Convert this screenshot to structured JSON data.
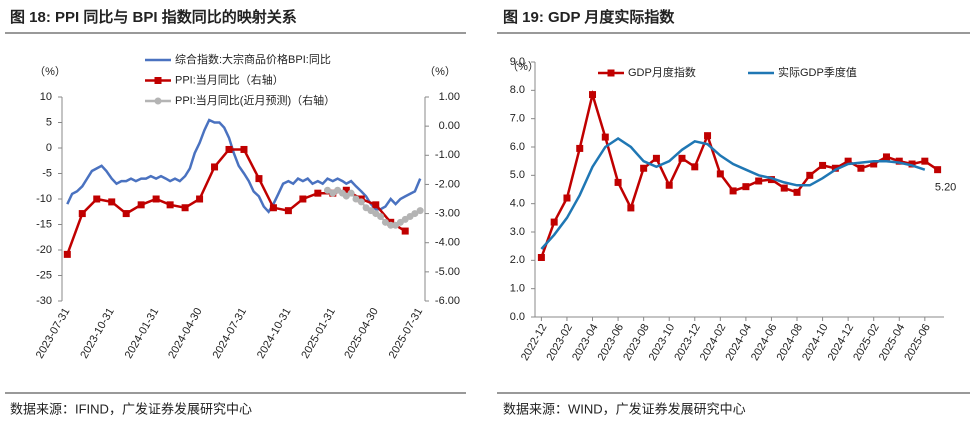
{
  "chart_data": [
    {
      "type": "line",
      "title": "图 18: PPI 同比与 BPI 指数同比的映射关系",
      "source": "数据来源：IFIND，广发证券发展研究中心",
      "y_unit": "（%）",
      "y2_unit": "（%）",
      "xlim": [
        "2023-07-20",
        "2025-08-10"
      ],
      "xticks": [
        "2023-07-31",
        "2023-10-31",
        "2024-01-31",
        "2024-04-30",
        "2024-07-31",
        "2024-10-31",
        "2025-01-31",
        "2025-04-30",
        "2025-07-31"
      ],
      "ylim": [
        -30,
        10
      ],
      "yticks": [
        10,
        5,
        0,
        -5,
        -10,
        -15,
        -20,
        -25,
        -30
      ],
      "y2lim": [
        -6,
        1
      ],
      "y2ticks": [
        {
          "value": 1,
          "label": "1.00"
        },
        {
          "value": 0,
          "label": "0.00"
        },
        {
          "value": -1,
          "label": "-1.00"
        },
        {
          "value": -2,
          "label": "-2.00"
        },
        {
          "value": -3,
          "label": "-3.00"
        },
        {
          "value": -4,
          "label": "-4.00"
        },
        {
          "value": -5,
          "label": "-5.00"
        },
        {
          "value": -6,
          "label": "-6.00"
        }
      ],
      "series": [
        {
          "name": "综合指数:大宗商品价格BPI:同比",
          "color": "#4a72c0",
          "marker": "none",
          "x": [
            "2023-07-31",
            "2023-08-10",
            "2023-08-20",
            "2023-08-31",
            "2023-09-10",
            "2023-09-20",
            "2023-09-30",
            "2023-10-10",
            "2023-10-20",
            "2023-10-31",
            "2023-11-10",
            "2023-11-20",
            "2023-11-30",
            "2023-12-10",
            "2023-12-20",
            "2023-12-31",
            "2024-01-10",
            "2024-01-20",
            "2024-01-31",
            "2024-02-10",
            "2024-02-20",
            "2024-02-29",
            "2024-03-10",
            "2024-03-20",
            "2024-03-31",
            "2024-04-10",
            "2024-04-20",
            "2024-04-30",
            "2024-05-10",
            "2024-05-20",
            "2024-05-31",
            "2024-06-10",
            "2024-06-20",
            "2024-06-30",
            "2024-07-10",
            "2024-07-20",
            "2024-07-31",
            "2024-08-10",
            "2024-08-20",
            "2024-08-31",
            "2024-09-10",
            "2024-09-20",
            "2024-09-30",
            "2024-10-10",
            "2024-10-20",
            "2024-10-31",
            "2024-11-10",
            "2024-11-20",
            "2024-11-30",
            "2024-12-10",
            "2024-12-20",
            "2024-12-31",
            "2025-01-10",
            "2025-01-20",
            "2025-01-31",
            "2025-02-10",
            "2025-02-20",
            "2025-02-28",
            "2025-03-10",
            "2025-03-20",
            "2025-03-31",
            "2025-04-10",
            "2025-04-20",
            "2025-04-30",
            "2025-05-10",
            "2025-05-20",
            "2025-05-31",
            "2025-06-10",
            "2025-06-20",
            "2025-06-30",
            "2025-07-10",
            "2025-07-20",
            "2025-07-31"
          ],
          "values": [
            -11,
            -9,
            -8.5,
            -7.5,
            -6,
            -4.5,
            -4,
            -3.5,
            -4.5,
            -6,
            -7,
            -6.5,
            -6.5,
            -6,
            -6.5,
            -6,
            -6,
            -5.5,
            -6,
            -5.5,
            -6,
            -6.5,
            -6,
            -6.5,
            -5.5,
            -4,
            -1,
            1,
            3.5,
            5.5,
            5,
            5,
            4,
            2,
            -1,
            -3.5,
            -5,
            -6.5,
            -8.5,
            -9.5,
            -11.5,
            -12.5,
            -11,
            -9,
            -7,
            -6.5,
            -7,
            -6,
            -6.5,
            -6,
            -7,
            -6.5,
            -7,
            -6,
            -6.5,
            -6,
            -6.5,
            -7,
            -6.5,
            -7.5,
            -8.5,
            -9.5,
            -11,
            -12,
            -12,
            -11.5,
            -10,
            -11,
            -10,
            -9.5,
            -9,
            -8.5,
            -6
          ]
        },
        {
          "name": "PPI:当月同比（右轴）",
          "color": "#c00000",
          "marker": "square",
          "axis": "y2",
          "x": [
            "2023-07-31",
            "2023-08-31",
            "2023-09-30",
            "2023-10-31",
            "2023-11-30",
            "2023-12-31",
            "2024-01-31",
            "2024-02-29",
            "2024-03-31",
            "2024-04-30",
            "2024-05-31",
            "2024-06-30",
            "2024-07-31",
            "2024-08-31",
            "2024-09-30",
            "2024-10-31",
            "2024-11-30",
            "2024-12-31",
            "2025-01-31",
            "2025-02-28",
            "2025-03-31",
            "2025-04-30",
            "2025-05-31",
            "2025-06-30"
          ],
          "values": [
            -4.4,
            -3.0,
            -2.5,
            -2.6,
            -3.0,
            -2.7,
            -2.5,
            -2.7,
            -2.8,
            -2.5,
            -1.4,
            -0.8,
            -0.8,
            -1.8,
            -2.8,
            -2.9,
            -2.5,
            -2.3,
            -2.3,
            -2.2,
            -2.5,
            -2.7,
            -3.3,
            -3.6
          ]
        },
        {
          "name": "PPI:当月同比(近月预测)（右轴）",
          "color": "#b4b4b4",
          "marker": "circle",
          "axis": "y2",
          "x": [
            "2025-01-20",
            "2025-01-31",
            "2025-02-10",
            "2025-02-20",
            "2025-02-28",
            "2025-03-10",
            "2025-03-20",
            "2025-03-31",
            "2025-04-10",
            "2025-04-20",
            "2025-04-30",
            "2025-05-10",
            "2025-05-20",
            "2025-05-31",
            "2025-06-10",
            "2025-06-20",
            "2025-06-30",
            "2025-07-10",
            "2025-07-20",
            "2025-07-31"
          ],
          "values": [
            -2.2,
            -2.3,
            -2.2,
            -2.3,
            -2.4,
            -2.3,
            -2.5,
            -2.6,
            -2.8,
            -2.9,
            -3.0,
            -3.1,
            -3.3,
            -3.4,
            -3.4,
            -3.3,
            -3.2,
            -3.1,
            -3.0,
            -2.9
          ]
        }
      ]
    },
    {
      "type": "line",
      "title": "图 19: GDP 月度实际指数",
      "source": "数据来源：WIND，广发证券发展研究中心",
      "y_unit": "（%）",
      "categories": [
        "2022-12",
        null,
        "2023-02",
        null,
        "2023-04",
        null,
        "2023-06",
        null,
        "2023-08",
        null,
        "2023-10",
        null,
        "2023-12",
        null,
        "2024-02",
        null,
        "2024-04",
        null,
        "2024-06",
        null,
        "2024-08",
        null,
        "2024-10",
        null,
        "2024-12",
        null,
        "2025-02",
        null,
        "2025-04",
        null,
        "2025-06",
        null
      ],
      "ylim": [
        0,
        9
      ],
      "yticks": [
        {
          "value": 0,
          "label": "0.0"
        },
        {
          "value": 1,
          "label": "1.0"
        },
        {
          "value": 2,
          "label": "2.0"
        },
        {
          "value": 3,
          "label": "3.0"
        },
        {
          "value": 4,
          "label": "4.0"
        },
        {
          "value": 5,
          "label": "5.0"
        },
        {
          "value": 6,
          "label": "6.0"
        },
        {
          "value": 7,
          "label": "7.0"
        },
        {
          "value": 8,
          "label": "8.0"
        },
        {
          "value": 9,
          "label": "9.0"
        }
      ],
      "series": [
        {
          "name": "GDP月度指数",
          "color": "#c00000",
          "marker": "square",
          "values": [
            2.1,
            3.35,
            4.2,
            5.95,
            7.85,
            6.35,
            4.75,
            3.85,
            5.25,
            5.6,
            4.65,
            5.6,
            5.3,
            6.4,
            5.05,
            4.45,
            4.6,
            4.8,
            4.85,
            4.55,
            4.4,
            5.0,
            5.35,
            5.25,
            5.5,
            5.25,
            5.4,
            5.65,
            5.5,
            5.4,
            5.5,
            5.2
          ],
          "value_labels": [
            null,
            null,
            null,
            null,
            null,
            null,
            null,
            null,
            null,
            null,
            null,
            null,
            null,
            null,
            null,
            null,
            null,
            null,
            null,
            null,
            null,
            null,
            null,
            null,
            null,
            null,
            null,
            null,
            null,
            null,
            null,
            "5.20"
          ]
        },
        {
          "name": "实际GDP季度值",
          "color": "#1f77b4",
          "marker": "none",
          "values": [
            2.4,
            2.9,
            3.5,
            4.3,
            5.3,
            6.0,
            6.3,
            6.0,
            5.5,
            5.3,
            5.5,
            5.9,
            6.2,
            6.1,
            5.7,
            5.4,
            5.2,
            5.0,
            4.9,
            4.75,
            4.65,
            4.65,
            4.9,
            5.2,
            5.4,
            5.45,
            5.5,
            5.5,
            5.45,
            5.35,
            5.2,
            null
          ]
        }
      ]
    }
  ]
}
